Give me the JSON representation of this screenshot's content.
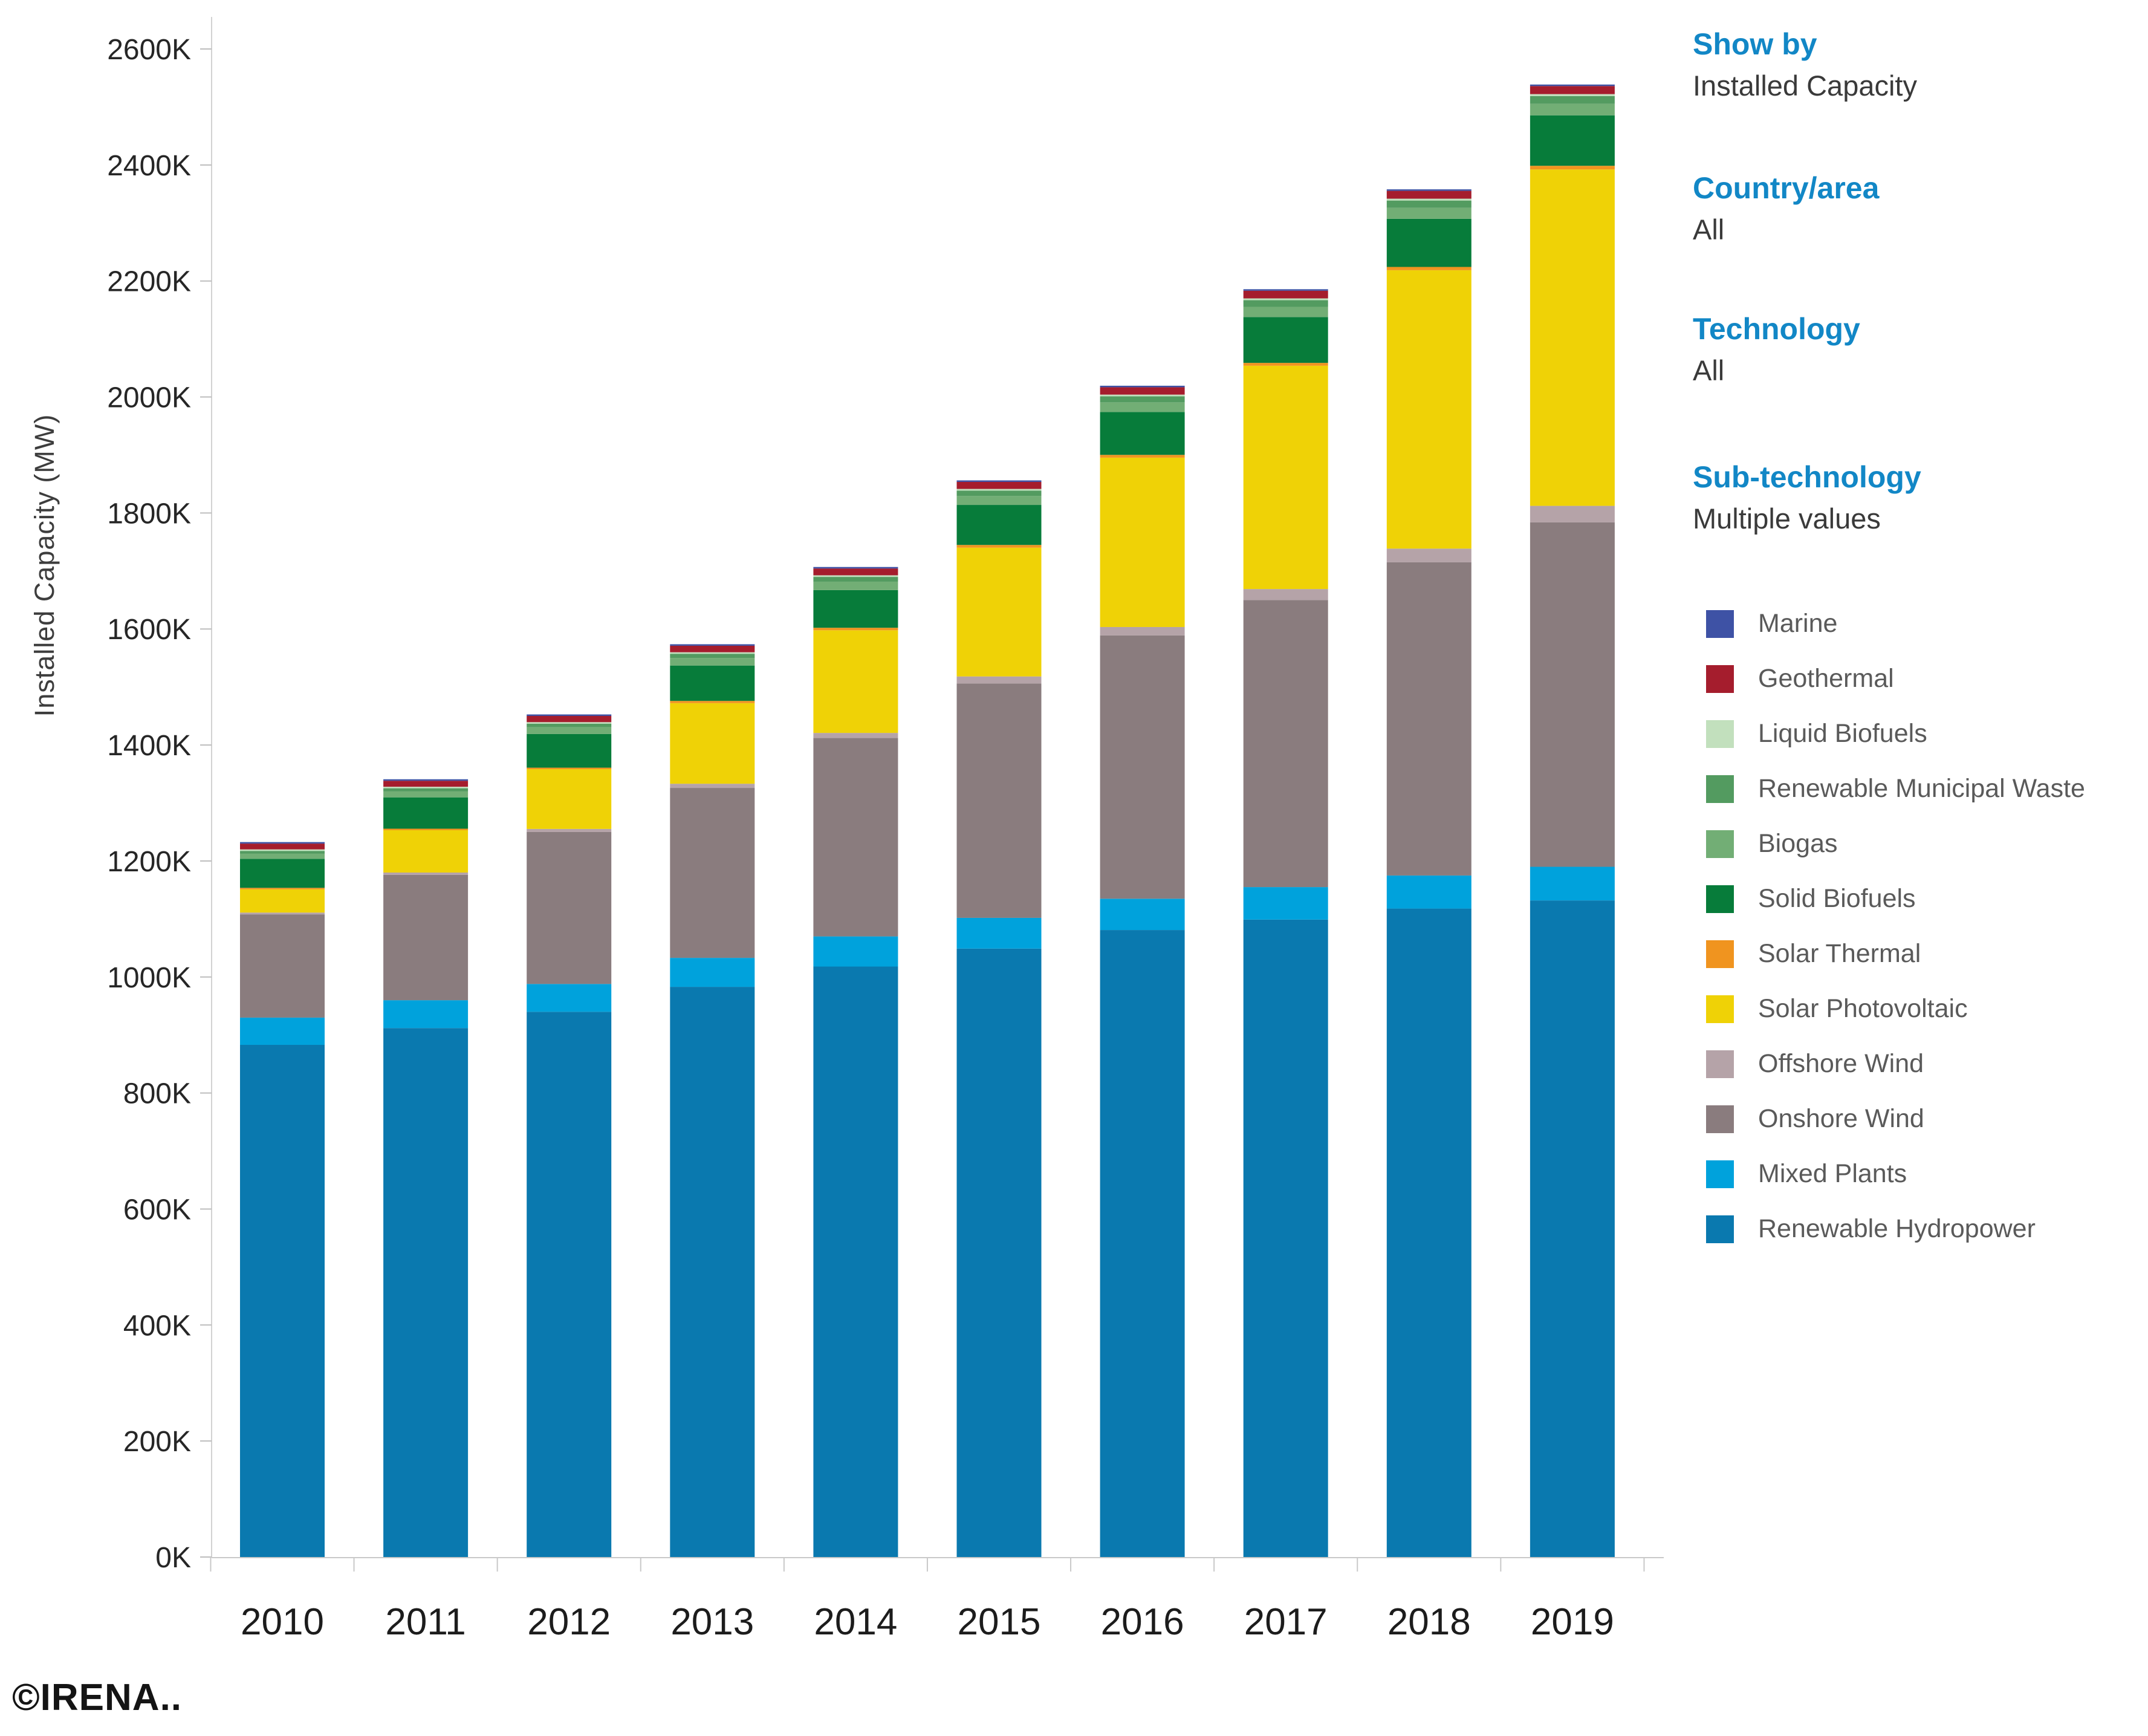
{
  "window": {
    "copyright": "©IRENA.."
  },
  "filters": {
    "label_color": "#1287c6",
    "value_color": "#3a3a3a",
    "items": [
      {
        "label": "Show by",
        "value": "Installed Capacity"
      },
      {
        "label": "Country/area",
        "value": "All"
      },
      {
        "label": "Technology",
        "value": "All"
      },
      {
        "label": "Sub-technology",
        "value": "Multiple values"
      }
    ]
  },
  "chart_data": {
    "type": "bar",
    "stacked": true,
    "title": "",
    "xlabel": "",
    "ylabel": "Installed Capacity (MW)",
    "unit": "thousand MW (axis labels use K = 1000 MW)",
    "ylim": [
      0,
      2600
    ],
    "y_tick_step": 200,
    "y_tick_suffix": "K",
    "grid": false,
    "legend_position": "right",
    "legend_text_color": "#5a5a5a",
    "axis_text_color": "#262626",
    "categories": [
      "2010",
      "2011",
      "2012",
      "2013",
      "2014",
      "2015",
      "2016",
      "2017",
      "2018",
      "2019"
    ],
    "series": [
      {
        "name": "Renewable Hydropower",
        "color": "#0a79af",
        "values": [
          883,
          912,
          940,
          983,
          1018,
          1049,
          1081,
          1099,
          1118,
          1132
        ]
      },
      {
        "name": "Mixed Plants",
        "color": "#00a2dc",
        "values": [
          47,
          48,
          48,
          50,
          52,
          53,
          54,
          56,
          57,
          58
        ]
      },
      {
        "name": "Onshore Wind",
        "color": "#8a7c7e",
        "values": [
          178,
          216,
          262,
          293,
          342,
          404,
          454,
          495,
          540,
          594
        ]
      },
      {
        "name": "Offshore Wind",
        "color": "#b5a3a8",
        "values": [
          3.1,
          4.1,
          5.3,
          7.2,
          8.8,
          12.2,
          14.4,
          18.9,
          23.6,
          28.3
        ]
      },
      {
        "name": "Solar Photovoltaic",
        "color": "#efd206",
        "values": [
          40,
          73,
          103,
          139,
          177,
          222,
          292,
          385,
          480,
          580
        ]
      },
      {
        "name": "Solar Thermal",
        "color": "#f0941f",
        "values": [
          1.3,
          1.6,
          2.5,
          3.8,
          4.3,
          4.7,
          4.8,
          4.9,
          5.6,
          6.3
        ]
      },
      {
        "name": "Solid Biofuels",
        "color": "#077c3a",
        "values": [
          50,
          54,
          58,
          61,
          65,
          69,
          74,
          79,
          83,
          87
        ]
      },
      {
        "name": "Biogas",
        "color": "#72ae75",
        "values": [
          8.8,
          10.2,
          11.7,
          13.1,
          14.5,
          15.6,
          16.6,
          17.6,
          18.9,
          19.8
        ]
      },
      {
        "name": "Renewable Municipal Waste",
        "color": "#539b60",
        "values": [
          4.9,
          5.5,
          6.2,
          7.2,
          8.2,
          9.1,
          10.3,
          11.5,
          12.6,
          13.5
        ]
      },
      {
        "name": "Liquid Biofuels",
        "color": "#c2e0bd",
        "values": [
          2.1,
          2.2,
          2.4,
          2.6,
          2.8,
          2.9,
          3.0,
          3.1,
          3.2,
          3.3
        ]
      },
      {
        "name": "Geothermal",
        "color": "#a51d2d",
        "values": [
          10.0,
          10.3,
          10.7,
          11.2,
          11.7,
          12.1,
          12.7,
          13.2,
          13.5,
          13.9
        ]
      },
      {
        "name": "Marine",
        "color": "#3e52a5",
        "values": [
          0.3,
          0.3,
          0.5,
          0.5,
          0.5,
          0.5,
          0.5,
          0.5,
          0.5,
          0.5
        ]
      }
    ],
    "legend_order_top_to_bottom": [
      "Marine",
      "Geothermal",
      "Liquid Biofuels",
      "Renewable Municipal Waste",
      "Biogas",
      "Solid Biofuels",
      "Solar Thermal",
      "Solar Photovoltaic",
      "Offshore Wind",
      "Onshore Wind",
      "Mixed Plants",
      "Renewable Hydropower"
    ]
  }
}
